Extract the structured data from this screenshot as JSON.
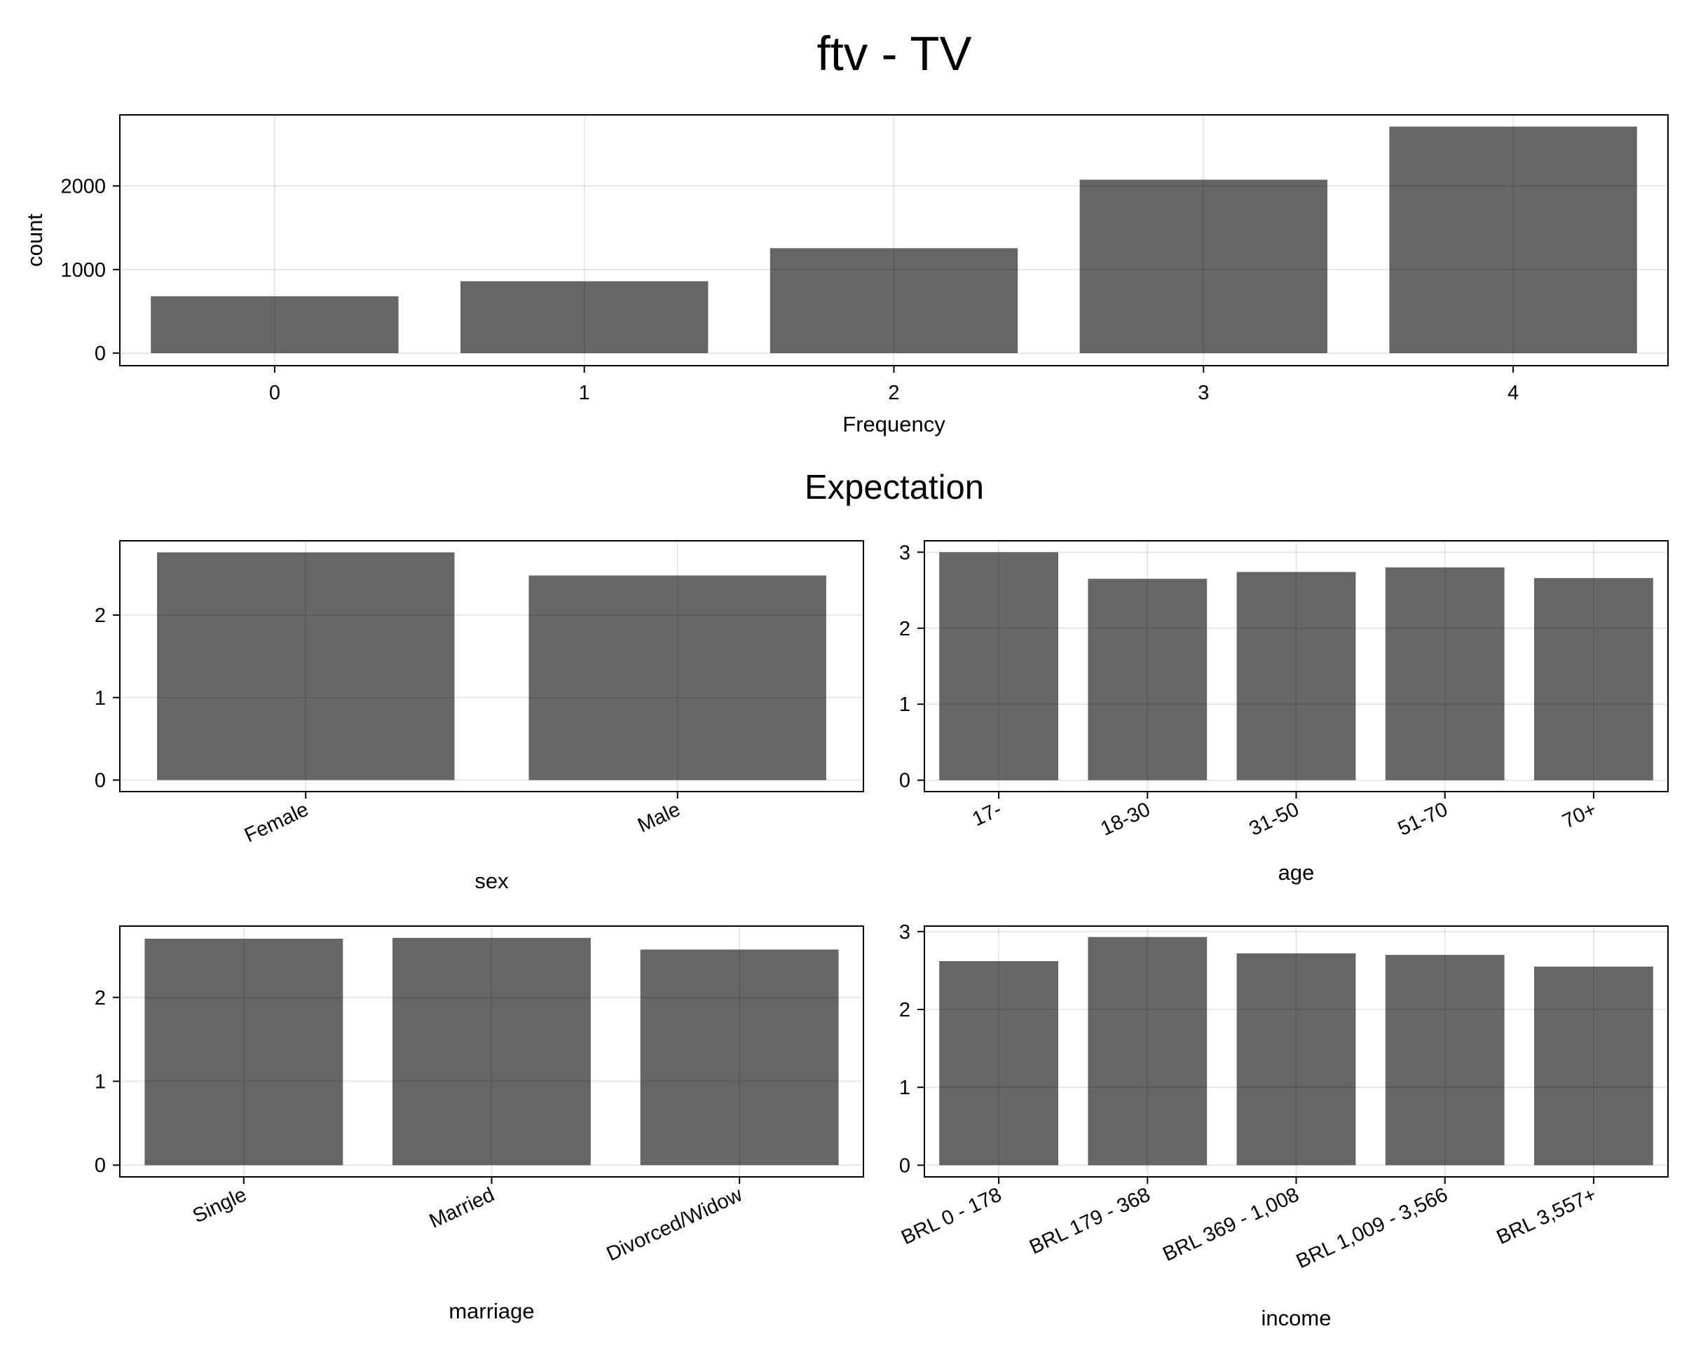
{
  "title": "ftv - TV",
  "subtitle": "Expectation",
  "bar_color": "#666666",
  "chart_data": [
    {
      "type": "bar",
      "xlabel": "Frequency",
      "ylabel": "count",
      "categories": [
        "0",
        "1",
        "2",
        "3",
        "4"
      ],
      "values": [
        680,
        860,
        1255,
        2075,
        2710
      ],
      "ylim": [
        -150,
        2850
      ],
      "yticks": [
        0,
        1000,
        2000
      ],
      "ytick_labels": [
        "0",
        "1000",
        "2000"
      ],
      "grid": true
    },
    {
      "type": "bar",
      "xlabel": "sex",
      "ylabel": "",
      "categories": [
        "Female",
        "Male"
      ],
      "values": [
        2.76,
        2.48
      ],
      "ylim": [
        -0.14,
        2.9
      ],
      "yticks": [
        0,
        1,
        2
      ],
      "ytick_labels": [
        "0",
        "1",
        "2"
      ],
      "grid": true
    },
    {
      "type": "bar",
      "xlabel": "age",
      "ylabel": "",
      "categories": [
        "17-",
        "18-30",
        "31-50",
        "51-70",
        "70+"
      ],
      "values": [
        3.0,
        2.65,
        2.74,
        2.8,
        2.66
      ],
      "ylim": [
        -0.15,
        3.15
      ],
      "yticks": [
        0,
        1,
        2,
        3
      ],
      "ytick_labels": [
        "0",
        "1",
        "2",
        "3"
      ],
      "grid": true
    },
    {
      "type": "bar",
      "xlabel": "marriage",
      "ylabel": "",
      "categories": [
        "Single",
        "Married",
        "Divorced/Widow"
      ],
      "values": [
        2.7,
        2.71,
        2.57
      ],
      "ylim": [
        -0.14,
        2.85
      ],
      "yticks": [
        0,
        1,
        2
      ],
      "ytick_labels": [
        "0",
        "1",
        "2"
      ],
      "grid": true
    },
    {
      "type": "bar",
      "xlabel": "income",
      "ylabel": "",
      "categories": [
        "BRL 0 - 178",
        "BRL 179 - 368",
        "BRL 369 - 1,008",
        "BRL 1,009 - 3,566",
        "BRL 3,557+"
      ],
      "values": [
        2.62,
        2.93,
        2.72,
        2.7,
        2.55
      ],
      "ylim": [
        -0.15,
        3.07
      ],
      "yticks": [
        0,
        1,
        2,
        3
      ],
      "ytick_labels": [
        "0",
        "1",
        "2",
        "3"
      ],
      "grid": true
    }
  ]
}
